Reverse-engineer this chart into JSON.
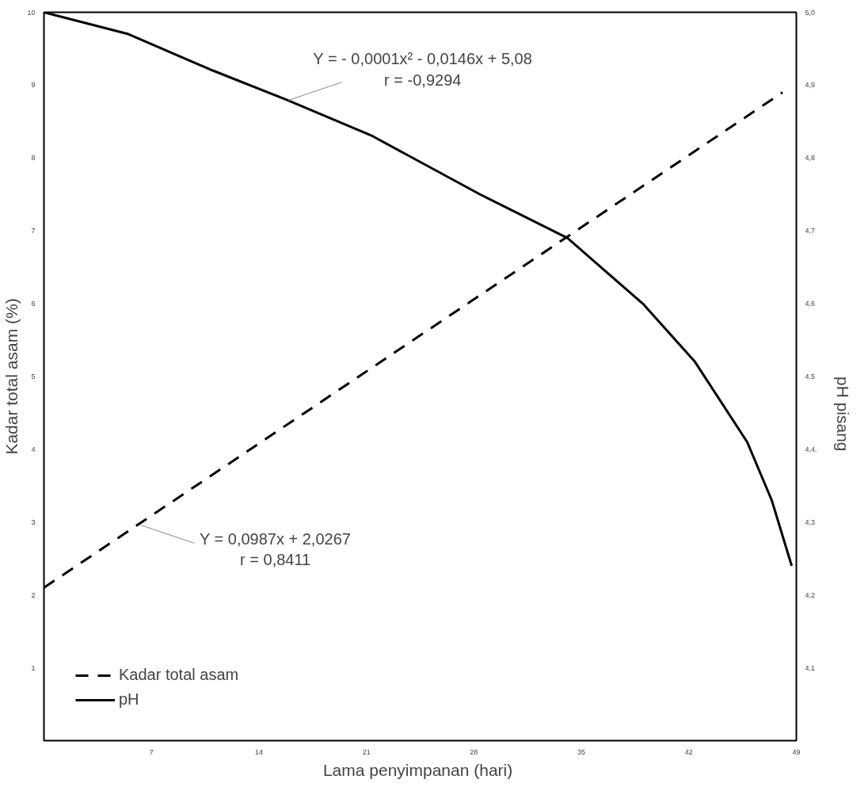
{
  "chart_data": {
    "type": "line",
    "xlabel": "Lama penyimpanan  (hari)",
    "ylabel": "Kadar total asam (%)",
    "y2label": "pH pisang",
    "xlim": [
      0,
      49
    ],
    "xticks": [
      7,
      14,
      21,
      28,
      35,
      42,
      49
    ],
    "ylim": [
      0,
      10
    ],
    "yticks": [
      1,
      2,
      3,
      4,
      5,
      6,
      7,
      8,
      9,
      10
    ],
    "y2lim": [
      4.0,
      5.0
    ],
    "y2ticks": [
      {
        "value": 4.1,
        "label": "4,1"
      },
      {
        "value": 4.2,
        "label": "4,2"
      },
      {
        "value": 4.3,
        "label": "4,3"
      },
      {
        "value": 4.4,
        "label": "4,4."
      },
      {
        "value": 4.5,
        "label": "4,5"
      },
      {
        "value": 4.6,
        "label": "4,6"
      },
      {
        "value": 4.7,
        "label": "4,7"
      },
      {
        "value": 4.8,
        "label": "4,8"
      },
      {
        "value": 4.9,
        "label": "4,9"
      },
      {
        "value": 5.0,
        "label": "5,0"
      }
    ],
    "grid": false,
    "legend": "bottom left",
    "marker": "none",
    "series": [
      {
        "name": "Kadar total asam",
        "color": "#000000",
        "line_style": "dashed",
        "x": [
          0,
          48.1
        ],
        "values": [
          2.1,
          8.9
        ]
      },
      {
        "name": "pH",
        "color": "#000000",
        "line_style": "solid",
        "axis": "y2",
        "x": [
          0,
          5.5,
          11,
          15.8,
          21.4,
          28.4,
          34.1,
          39,
          42.4,
          45.8,
          47.4,
          48.7
        ],
        "values": [
          5.0,
          4.97,
          4.92,
          4.88,
          4.83,
          4.75,
          4.69,
          4.6,
          4.52,
          4.41,
          4.33,
          4.24
        ]
      }
    ],
    "annotations": [
      {
        "text": "Y = - 0,0001x² - 0,0146x + 5,08\nr = -0,9294",
        "x": 15.9,
        "y": 8.79
      },
      {
        "text": "Y = 0,0987x + 2,0267\nr = 0,8411",
        "x": 6.3,
        "y": 2.96
      }
    ]
  }
}
